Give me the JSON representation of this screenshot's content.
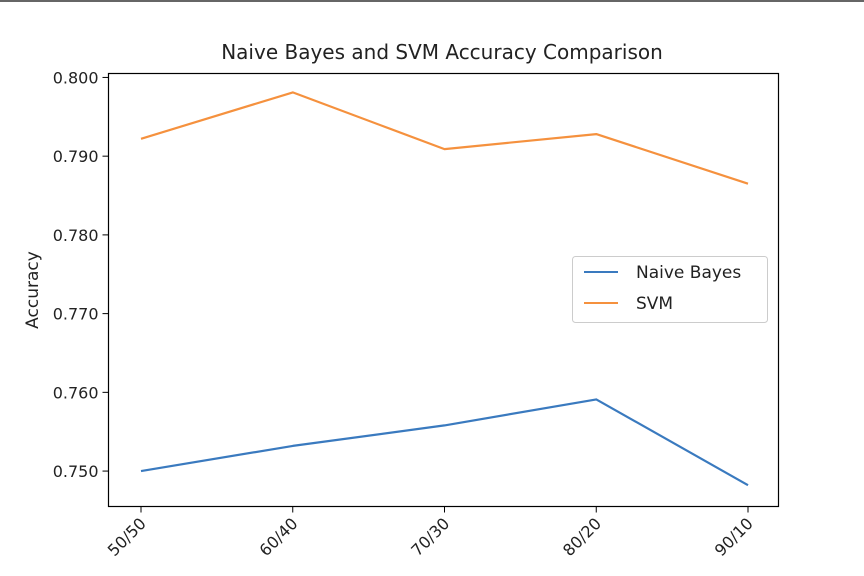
{
  "chart_data": {
    "type": "line",
    "title": "Naive Bayes and SVM Accuracy Comparison",
    "xlabel": "",
    "ylabel": "Accuracy",
    "categories": [
      "50/50",
      "60/40",
      "70/30",
      "80/20",
      "90/10"
    ],
    "yticks": [
      "0.750",
      "0.760",
      "0.770",
      "0.780",
      "0.790",
      "0.800"
    ],
    "ylim": [
      0.7455,
      0.8005
    ],
    "grid": false,
    "legend_position": "center-right",
    "series": [
      {
        "name": "Naive Bayes",
        "color": "#3a7abf",
        "values": [
          0.75,
          0.7532,
          0.7558,
          0.7591,
          0.7482
        ]
      },
      {
        "name": "SVM",
        "color": "#f5913e",
        "values": [
          0.7922,
          0.7981,
          0.7909,
          0.7928,
          0.7865
        ]
      }
    ]
  }
}
